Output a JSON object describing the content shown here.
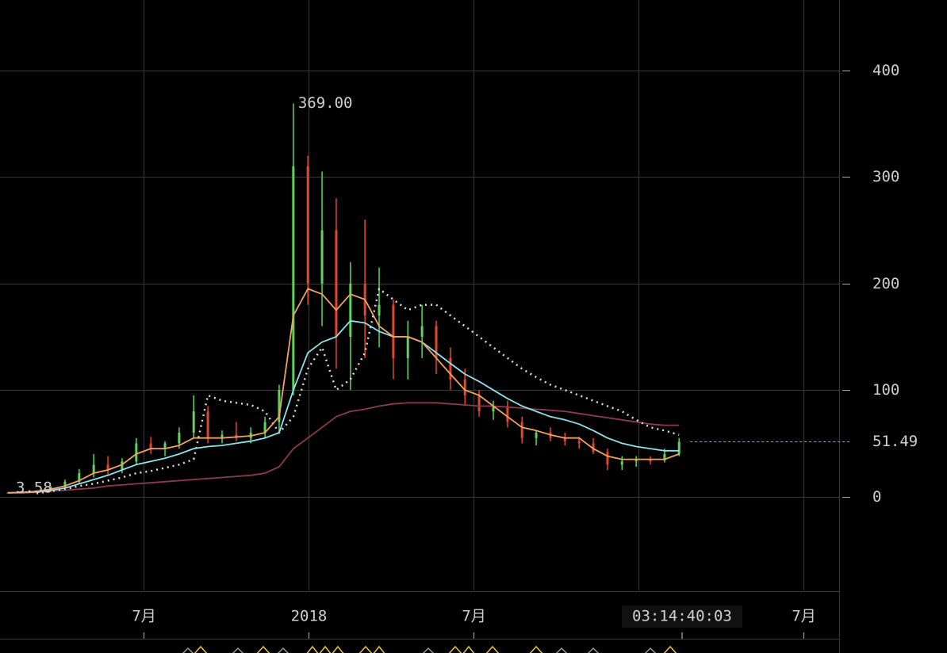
{
  "chart_data": {
    "type": "candlestick",
    "xlim": [
      2017.065,
      2019.608
    ],
    "xticks": [
      {
        "value": 2017.5,
        "label": "7月"
      },
      2018,
      {
        "value": 2018.5,
        "label": "7月"
      },
      {
        "value": 2019,
        "label": null
      },
      {
        "value": 2019.5,
        "label": "7月"
      }
    ],
    "ylim": [
      -88,
      466
    ],
    "yticks": [
      0,
      100,
      200,
      300,
      400
    ],
    "grid": true,
    "up_color": "#5fd35f",
    "down_color": "#e2472b",
    "x": [
      2017.089,
      2017.132,
      2017.176,
      2017.219,
      2017.262,
      2017.305,
      2017.349,
      2017.392,
      2017.435,
      2017.478,
      2017.522,
      2017.565,
      2017.608,
      2017.652,
      2017.695,
      2017.738,
      2017.781,
      2017.825,
      2017.868,
      2017.911,
      2017.954,
      2017.998,
      2018.041,
      2018.084,
      2018.127,
      2018.171,
      2018.214,
      2018.257,
      2018.301,
      2018.344,
      2018.387,
      2018.43,
      2018.474,
      2018.517,
      2018.56,
      2018.603,
      2018.647,
      2018.69,
      2018.733,
      2018.777,
      2018.82,
      2018.863,
      2018.906,
      2018.95,
      2018.993,
      2019.036,
      2019.079,
      2019.123
    ],
    "ohlc": [
      [
        3.6,
        4,
        3.58,
        3.8
      ],
      [
        3.8,
        4.5,
        3.6,
        4.2
      ],
      [
        4.2,
        6,
        4,
        5.5
      ],
      [
        5.5,
        10,
        5,
        9
      ],
      [
        9,
        16,
        8,
        14
      ],
      [
        14,
        26,
        12,
        22
      ],
      [
        22,
        40,
        18,
        30
      ],
      [
        30,
        38,
        20,
        25
      ],
      [
        25,
        36,
        22,
        33
      ],
      [
        33,
        55,
        30,
        50
      ],
      [
        50,
        56,
        40,
        45
      ],
      [
        45,
        52,
        38,
        50
      ],
      [
        50,
        65,
        45,
        60
      ],
      [
        60,
        95,
        55,
        80
      ],
      [
        80,
        85,
        50,
        55
      ],
      [
        55,
        62,
        50,
        58
      ],
      [
        58,
        70,
        52,
        55
      ],
      [
        55,
        65,
        50,
        60
      ],
      [
        60,
        75,
        55,
        70
      ],
      [
        70,
        105,
        60,
        100
      ],
      [
        100,
        369,
        95,
        310
      ],
      [
        310,
        320,
        180,
        200
      ],
      [
        200,
        305,
        160,
        250
      ],
      [
        250,
        280,
        120,
        150
      ],
      [
        150,
        220,
        100,
        200
      ],
      [
        200,
        260,
        130,
        170
      ],
      [
        170,
        215,
        140,
        180
      ],
      [
        180,
        185,
        110,
        130
      ],
      [
        130,
        165,
        110,
        150
      ],
      [
        150,
        180,
        130,
        160
      ],
      [
        160,
        165,
        115,
        130
      ],
      [
        130,
        140,
        100,
        110
      ],
      [
        110,
        120,
        85,
        95
      ],
      [
        95,
        100,
        75,
        80
      ],
      [
        80,
        90,
        72,
        85
      ],
      [
        85,
        90,
        65,
        70
      ],
      [
        70,
        75,
        50,
        55
      ],
      [
        55,
        62,
        48,
        60
      ],
      [
        60,
        65,
        52,
        55
      ],
      [
        55,
        60,
        48,
        52
      ],
      [
        52,
        56,
        45,
        50
      ],
      [
        50,
        55,
        40,
        42
      ],
      [
        42,
        45,
        25,
        30
      ],
      [
        30,
        38,
        25,
        33
      ],
      [
        33,
        38,
        28,
        35
      ],
      [
        35,
        38,
        30,
        33
      ],
      [
        34,
        45,
        32,
        40
      ],
      [
        40,
        55,
        38,
        51.49
      ]
    ],
    "series": [
      {
        "color": "#8a3b52",
        "style": "solid",
        "values": [
          3.6,
          3.6,
          4,
          5,
          6,
          7,
          8,
          10,
          11,
          12,
          13,
          14,
          15,
          16,
          17,
          18,
          19,
          20,
          22,
          28,
          45,
          55,
          65,
          75,
          80,
          82,
          85,
          87,
          88,
          88,
          88,
          87,
          86,
          85,
          85,
          84,
          83,
          82,
          81,
          80,
          78,
          76,
          74,
          72,
          70,
          68,
          67,
          67
        ]
      },
      {
        "color": "#dddddd",
        "style": "dotted",
        "values": [
          null,
          null,
          3,
          5,
          7,
          10,
          12,
          15,
          18,
          22,
          24,
          27,
          30,
          35,
          95,
          90,
          88,
          86,
          80,
          60,
          75,
          120,
          140,
          100,
          110,
          135,
          195,
          185,
          175,
          180,
          180,
          170,
          160,
          150,
          140,
          130,
          120,
          112,
          105,
          100,
          95,
          90,
          85,
          80,
          72,
          65,
          62,
          58
        ]
      },
      {
        "color": "#8fe1ec",
        "style": "solid",
        "values": [
          3.6,
          3.8,
          4.5,
          6,
          8,
          12,
          16,
          20,
          25,
          30,
          33,
          36,
          40,
          45,
          47,
          48,
          50,
          52,
          55,
          60,
          100,
          135,
          145,
          150,
          165,
          163,
          155,
          150,
          150,
          145,
          135,
          125,
          115,
          108,
          100,
          92,
          85,
          80,
          75,
          72,
          68,
          62,
          55,
          50,
          47,
          45,
          43,
          43
        ]
      },
      {
        "color": "#f0a464",
        "style": "solid",
        "values": [
          3.6,
          4,
          5,
          7,
          10,
          15,
          22,
          25,
          30,
          40,
          45,
          45,
          48,
          55,
          55,
          55,
          56,
          57,
          60,
          75,
          170,
          195,
          190,
          175,
          190,
          185,
          160,
          150,
          150,
          145,
          130,
          115,
          100,
          95,
          85,
          75,
          65,
          62,
          58,
          55,
          55,
          45,
          38,
          35,
          35,
          35,
          35,
          40
        ]
      }
    ],
    "high_label": {
      "value": 369,
      "label": "369.00"
    },
    "low_label": {
      "value": 3.58,
      "label": "3.58"
    },
    "last_price": {
      "value": 51.49,
      "label": "51.49",
      "color": "#5fd35f"
    },
    "countdown": {
      "x": 2019.132,
      "label": "03:14:40:03"
    }
  }
}
